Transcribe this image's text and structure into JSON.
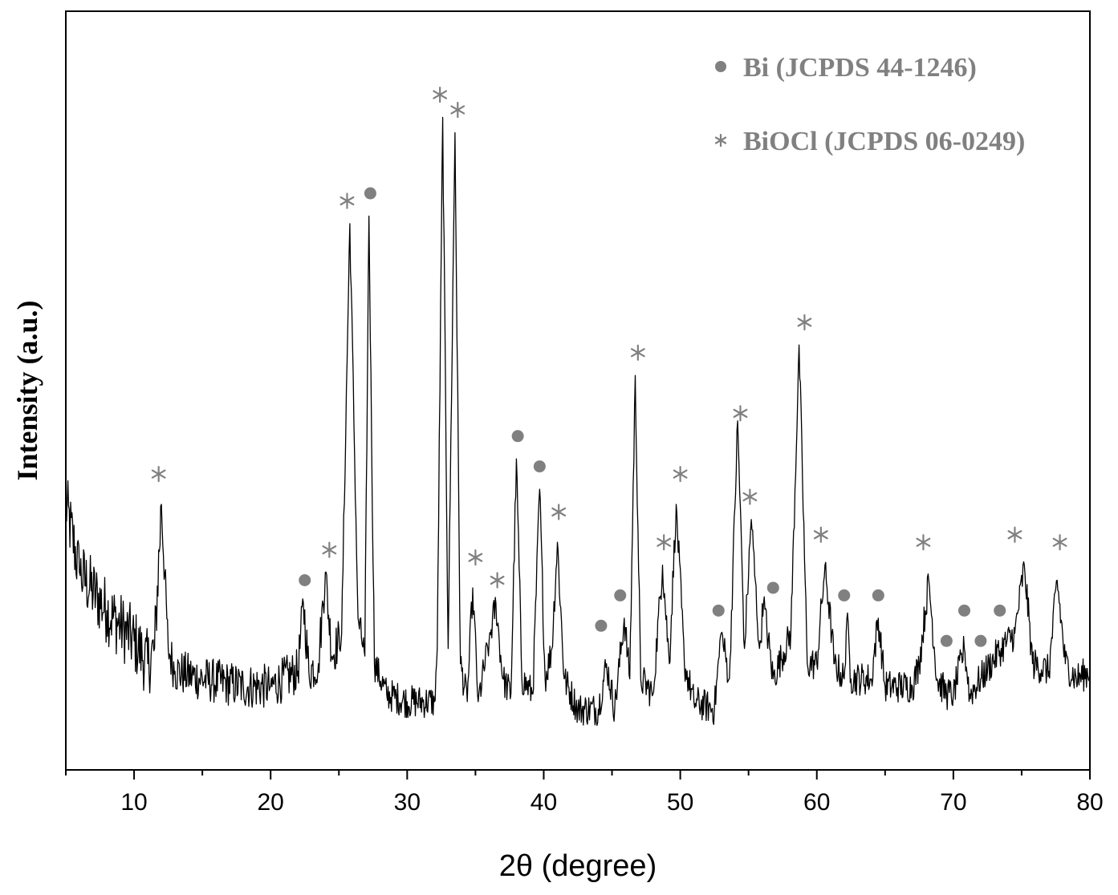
{
  "chart_data": {
    "type": "line",
    "title": "",
    "xlabel": "2θ (degree)",
    "ylabel": "Intensity (a.u.)",
    "xlim": [
      5,
      80
    ],
    "ylim": [
      0,
      1
    ],
    "x_ticks": [
      10,
      20,
      30,
      40,
      50,
      60,
      70,
      80
    ],
    "y_ticks_shown": false,
    "grid": false,
    "legend_position": "top-right",
    "colors": {
      "line": "#000000",
      "marker": "#808080",
      "axis": "#000000"
    },
    "legend": [
      {
        "marker": "circle",
        "label": "Bi (JCPDS 44-1246)"
      },
      {
        "marker": "asterisk",
        "label": "BiOCl (JCPDS 06-0249)"
      }
    ],
    "series": [
      {
        "x": [
          5,
          6,
          8,
          10,
          11,
          11.5,
          12.0,
          12.5,
          13,
          15,
          18,
          20,
          22,
          22.4,
          22.8,
          23.5,
          24.0,
          24.5,
          25.2,
          25.8,
          26.4,
          26.9,
          27.2,
          27.6,
          28.5,
          30,
          32,
          32.2,
          32.6,
          33.0,
          33.5,
          33.9,
          34.4,
          34.8,
          35.2,
          36.0,
          36.5,
          37.0,
          37.6,
          38.0,
          38.4,
          39.2,
          39.7,
          40.1,
          40.6,
          41.0,
          41.5,
          42.5,
          44,
          44.6,
          45.2,
          45.9,
          46.3,
          46.7,
          47.1,
          48,
          48.7,
          49.2,
          49.7,
          50.3,
          51,
          52.5,
          53.0,
          53.6,
          54.2,
          54.7,
          55.2,
          55.8,
          56.1,
          56.8,
          58.1,
          58.7,
          59.3,
          60.0,
          60.6,
          61.3,
          62.0,
          62.2,
          62.5,
          64,
          64.5,
          65,
          67,
          67.5,
          68.2,
          68.8,
          69.5,
          70,
          70.8,
          71.2,
          72,
          73.5,
          74.5,
          75.2,
          75.8,
          77,
          77.6,
          78.2,
          79,
          80
        ],
        "y": [
          0.35,
          0.26,
          0.21,
          0.17,
          0.14,
          0.16,
          0.35,
          0.16,
          0.13,
          0.12,
          0.11,
          0.11,
          0.13,
          0.22,
          0.13,
          0.14,
          0.26,
          0.15,
          0.18,
          0.72,
          0.2,
          0.15,
          0.73,
          0.14,
          0.1,
          0.09,
          0.09,
          0.16,
          0.86,
          0.16,
          0.84,
          0.14,
          0.09,
          0.24,
          0.09,
          0.17,
          0.22,
          0.12,
          0.1,
          0.41,
          0.12,
          0.1,
          0.37,
          0.12,
          0.16,
          0.3,
          0.12,
          0.08,
          0.08,
          0.14,
          0.08,
          0.2,
          0.12,
          0.52,
          0.12,
          0.1,
          0.27,
          0.14,
          0.35,
          0.14,
          0.09,
          0.08,
          0.18,
          0.12,
          0.46,
          0.16,
          0.33,
          0.16,
          0.22,
          0.12,
          0.18,
          0.56,
          0.14,
          0.14,
          0.27,
          0.14,
          0.12,
          0.2,
          0.12,
          0.12,
          0.2,
          0.11,
          0.11,
          0.14,
          0.25,
          0.12,
          0.1,
          0.1,
          0.16,
          0.1,
          0.12,
          0.16,
          0.18,
          0.27,
          0.14,
          0.13,
          0.25,
          0.14,
          0.12,
          0.13
        ]
      }
    ],
    "annotations": [
      {
        "marker": "asterisk",
        "x": 11.8,
        "y": 0.39
      },
      {
        "marker": "circle",
        "x": 22.5,
        "y": 0.25
      },
      {
        "marker": "asterisk",
        "x": 24.3,
        "y": 0.29
      },
      {
        "marker": "asterisk",
        "x": 25.6,
        "y": 0.75
      },
      {
        "marker": "circle",
        "x": 27.3,
        "y": 0.76
      },
      {
        "marker": "asterisk",
        "x": 32.4,
        "y": 0.89
      },
      {
        "marker": "asterisk",
        "x": 33.7,
        "y": 0.87
      },
      {
        "marker": "asterisk",
        "x": 35.0,
        "y": 0.28
      },
      {
        "marker": "asterisk",
        "x": 36.6,
        "y": 0.25
      },
      {
        "marker": "circle",
        "x": 38.1,
        "y": 0.44
      },
      {
        "marker": "circle",
        "x": 39.7,
        "y": 0.4
      },
      {
        "marker": "asterisk",
        "x": 41.1,
        "y": 0.34
      },
      {
        "marker": "circle",
        "x": 44.2,
        "y": 0.19
      },
      {
        "marker": "circle",
        "x": 45.6,
        "y": 0.23
      },
      {
        "marker": "asterisk",
        "x": 46.9,
        "y": 0.55
      },
      {
        "marker": "asterisk",
        "x": 48.8,
        "y": 0.3
      },
      {
        "marker": "asterisk",
        "x": 50.0,
        "y": 0.39
      },
      {
        "marker": "circle",
        "x": 52.8,
        "y": 0.21
      },
      {
        "marker": "asterisk",
        "x": 54.4,
        "y": 0.47
      },
      {
        "marker": "asterisk",
        "x": 55.1,
        "y": 0.36
      },
      {
        "marker": "circle",
        "x": 56.8,
        "y": 0.24
      },
      {
        "marker": "asterisk",
        "x": 59.1,
        "y": 0.59
      },
      {
        "marker": "asterisk",
        "x": 60.3,
        "y": 0.31
      },
      {
        "marker": "circle",
        "x": 62.0,
        "y": 0.23
      },
      {
        "marker": "circle",
        "x": 64.5,
        "y": 0.23
      },
      {
        "marker": "asterisk",
        "x": 67.8,
        "y": 0.3
      },
      {
        "marker": "circle",
        "x": 69.5,
        "y": 0.17
      },
      {
        "marker": "circle",
        "x": 70.8,
        "y": 0.21
      },
      {
        "marker": "circle",
        "x": 72.0,
        "y": 0.17
      },
      {
        "marker": "circle",
        "x": 73.4,
        "y": 0.21
      },
      {
        "marker": "asterisk",
        "x": 74.5,
        "y": 0.31
      },
      {
        "marker": "asterisk",
        "x": 77.8,
        "y": 0.3
      }
    ]
  }
}
